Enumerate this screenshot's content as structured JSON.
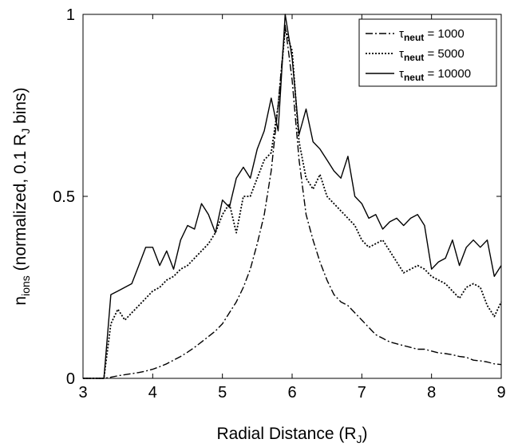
{
  "chart_data": {
    "type": "line",
    "xlabel": {
      "main": "Radial Distance (R",
      "sub": "J",
      "close": ")"
    },
    "ylabel": {
      "n": "n",
      "n_sub": "ions",
      "mid": " (normalized, 0.1 R",
      "r_sub": "J",
      "end": " bins)"
    },
    "xlim": [
      3,
      9
    ],
    "ylim": [
      0,
      1
    ],
    "xticks": [
      3,
      4,
      5,
      6,
      7,
      8,
      9
    ],
    "yticks": [
      0,
      0.5,
      1
    ],
    "xtick_labels": [
      "3",
      "4",
      "5",
      "6",
      "7",
      "8",
      "9"
    ],
    "ytick_labels": [
      "0",
      "0.5",
      "1"
    ],
    "legend_position": "top-right",
    "x": [
      3.0,
      3.1,
      3.2,
      3.3,
      3.4,
      3.5,
      3.6,
      3.7,
      3.8,
      3.9,
      4.0,
      4.1,
      4.2,
      4.3,
      4.4,
      4.5,
      4.6,
      4.7,
      4.8,
      4.9,
      5.0,
      5.1,
      5.2,
      5.3,
      5.4,
      5.5,
      5.6,
      5.7,
      5.8,
      5.9,
      6.0,
      6.1,
      6.2,
      6.3,
      6.4,
      6.5,
      6.6,
      6.7,
      6.8,
      6.9,
      7.0,
      7.1,
      7.2,
      7.3,
      7.4,
      7.5,
      7.6,
      7.7,
      7.8,
      7.9,
      8.0,
      8.1,
      8.2,
      8.3,
      8.4,
      8.5,
      8.6,
      8.7,
      8.8,
      8.9,
      9.0
    ],
    "series": [
      {
        "name_main": "τ",
        "name_sub": "neut",
        "name_value": " = 1000",
        "dash": "9,3,2,3",
        "values": [
          0,
          0,
          0,
          0,
          0.003,
          0.007,
          0.01,
          0.013,
          0.016,
          0.02,
          0.025,
          0.032,
          0.04,
          0.05,
          0.06,
          0.072,
          0.085,
          0.1,
          0.115,
          0.13,
          0.15,
          0.18,
          0.21,
          0.25,
          0.3,
          0.37,
          0.45,
          0.57,
          0.75,
          0.97,
          0.82,
          0.6,
          0.45,
          0.38,
          0.32,
          0.27,
          0.23,
          0.21,
          0.2,
          0.18,
          0.16,
          0.14,
          0.12,
          0.11,
          0.1,
          0.095,
          0.09,
          0.085,
          0.08,
          0.08,
          0.075,
          0.07,
          0.068,
          0.065,
          0.06,
          0.058,
          0.05,
          0.048,
          0.045,
          0.04,
          0.038
        ]
      },
      {
        "name_main": "τ",
        "name_sub": "neut",
        "name_value": " = 5000",
        "dash": "2,2",
        "values": [
          0,
          0,
          0,
          0,
          0.15,
          0.19,
          0.16,
          0.18,
          0.2,
          0.22,
          0.24,
          0.25,
          0.27,
          0.28,
          0.3,
          0.31,
          0.33,
          0.35,
          0.37,
          0.4,
          0.45,
          0.48,
          0.4,
          0.5,
          0.5,
          0.55,
          0.6,
          0.62,
          0.75,
          0.96,
          0.9,
          0.65,
          0.55,
          0.52,
          0.56,
          0.5,
          0.48,
          0.46,
          0.44,
          0.42,
          0.38,
          0.36,
          0.37,
          0.38,
          0.35,
          0.32,
          0.29,
          0.3,
          0.31,
          0.3,
          0.28,
          0.27,
          0.26,
          0.24,
          0.22,
          0.25,
          0.26,
          0.25,
          0.2,
          0.17,
          0.21
        ]
      },
      {
        "name_main": "τ",
        "name_sub": "neut",
        "name_value": " = 10000",
        "dash": "",
        "values": [
          0,
          0,
          0,
          0,
          0.23,
          0.24,
          0.25,
          0.26,
          0.31,
          0.36,
          0.36,
          0.31,
          0.35,
          0.3,
          0.38,
          0.42,
          0.41,
          0.48,
          0.45,
          0.4,
          0.49,
          0.47,
          0.55,
          0.58,
          0.55,
          0.63,
          0.68,
          0.77,
          0.68,
          1.0,
          0.88,
          0.67,
          0.74,
          0.65,
          0.63,
          0.6,
          0.57,
          0.55,
          0.61,
          0.5,
          0.48,
          0.44,
          0.45,
          0.41,
          0.43,
          0.44,
          0.42,
          0.44,
          0.45,
          0.42,
          0.3,
          0.32,
          0.33,
          0.38,
          0.31,
          0.36,
          0.38,
          0.36,
          0.38,
          0.28,
          0.31
        ]
      }
    ]
  }
}
